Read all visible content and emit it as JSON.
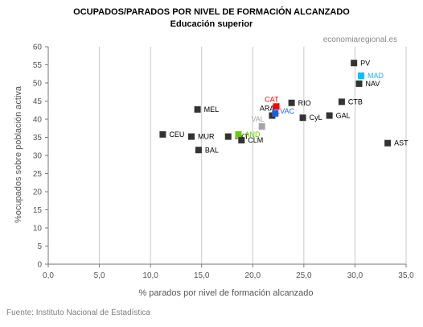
{
  "header": {
    "title": "OCUPADOS/PARADOS POR NIVEL DE FORMACIÓN ALCANZADO",
    "subtitle": "Educación superior"
  },
  "watermark": "economiaregional.es",
  "footer": {
    "source": "Fuente: Instituto Nacional de Estadística"
  },
  "colors": {
    "default": "#333333",
    "CAT": "#ff0000",
    "MAD": "#00bfff",
    "AND": "#66cc00",
    "VAL": "#a6a6a6",
    "C.VAC": "#1f5fe0"
  },
  "chart_data": {
    "type": "scatter",
    "title": "OCUPADOS/PARADOS POR NIVEL DE FORMACIÓN ALCANZADO",
    "subtitle": "Educación superior",
    "xlabel": "% parados por nivel de formación alcanzado",
    "ylabel": "%ocupados sobre población activa",
    "xlim": [
      0,
      35
    ],
    "ylim": [
      0,
      60
    ],
    "x_ticks": [
      "0,0",
      "5,0",
      "10,0",
      "15,0",
      "20,0",
      "25,0",
      "30,0",
      "35,0"
    ],
    "y_ticks": [
      "0",
      "5",
      "10",
      "15",
      "20",
      "25",
      "30",
      "35",
      "40",
      "45",
      "50",
      "55",
      "60"
    ],
    "grid": "vertical",
    "legend": "none",
    "points": [
      {
        "label": "PV",
        "x": 29.9,
        "y": 55.5,
        "color": "#333333",
        "pos": "right"
      },
      {
        "label": "MAD",
        "x": 30.6,
        "y": 52.0,
        "color": "#00bfff",
        "pos": "right"
      },
      {
        "label": "NAV",
        "x": 30.4,
        "y": 49.8,
        "color": "#333333",
        "pos": "right"
      },
      {
        "label": "CTB",
        "x": 28.7,
        "y": 44.8,
        "color": "#333333",
        "pos": "right"
      },
      {
        "label": "CAT",
        "x": 22.3,
        "y": 43.5,
        "color": "#ff0000",
        "pos": "topleft"
      },
      {
        "label": "RIO",
        "x": 23.8,
        "y": 44.5,
        "color": "#333333",
        "pos": "right"
      },
      {
        "label": "MEL",
        "x": 14.6,
        "y": 42.7,
        "color": "#333333",
        "pos": "right"
      },
      {
        "label": "ARA",
        "x": 21.9,
        "y": 41.0,
        "color": "#333333",
        "pos": "topleft"
      },
      {
        "label": "C.VAC",
        "x": 22.2,
        "y": 41.6,
        "color": "#1f5fe0",
        "pos": "topright"
      },
      {
        "label": "GAL",
        "x": 27.5,
        "y": 41.0,
        "color": "#333333",
        "pos": "right"
      },
      {
        "label": "CyL",
        "x": 24.9,
        "y": 40.4,
        "color": "#333333",
        "pos": "right"
      },
      {
        "label": "VAL",
        "x": 20.9,
        "y": 38.0,
        "color": "#a6a6a6",
        "pos": "topleft"
      },
      {
        "label": "CEU",
        "x": 11.2,
        "y": 35.8,
        "color": "#333333",
        "pos": "right"
      },
      {
        "label": "MUR",
        "x": 14.0,
        "y": 35.2,
        "color": "#333333",
        "pos": "right"
      },
      {
        "label": "EXT",
        "x": 17.6,
        "y": 35.2,
        "color": "#333333",
        "pos": "right"
      },
      {
        "label": "AND",
        "x": 18.6,
        "y": 35.8,
        "color": "#66cc00",
        "pos": "right"
      },
      {
        "label": "CLM",
        "x": 18.9,
        "y": 34.2,
        "color": "#333333",
        "pos": "right"
      },
      {
        "label": "BAL",
        "x": 14.7,
        "y": 31.5,
        "color": "#333333",
        "pos": "right"
      },
      {
        "label": "AST",
        "x": 33.2,
        "y": 33.4,
        "color": "#333333",
        "pos": "right"
      }
    ]
  }
}
